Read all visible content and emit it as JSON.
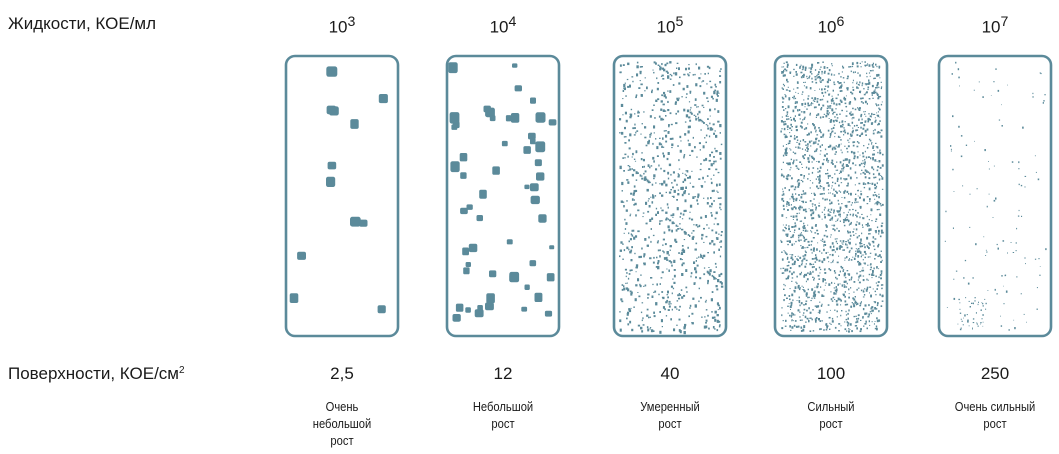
{
  "labels": {
    "liquids_text": "Жидкости, КОЕ/мл",
    "surfaces_text": "Поверхности, КОЕ/см",
    "surfaces_sup": "2"
  },
  "columns": [
    {
      "exp_base": "10",
      "exp_power": "3",
      "surface_value": "2,5",
      "growth_line1": "Очень",
      "growth_line2": "небольшой",
      "growth_line3": "рост",
      "density": "very-low"
    },
    {
      "exp_base": "10",
      "exp_power": "4",
      "surface_value": "12",
      "growth_line1": "Небольшой",
      "growth_line2": "рост",
      "growth_line3": "",
      "density": "low"
    },
    {
      "exp_base": "10",
      "exp_power": "5",
      "surface_value": "40",
      "growth_line1": "Умеренный",
      "growth_line2": "рост",
      "growth_line3": "",
      "density": "moderate"
    },
    {
      "exp_base": "10",
      "exp_power": "6",
      "surface_value": "100",
      "growth_line1": "Сильный",
      "growth_line2": "рост",
      "growth_line3": "",
      "density": "heavy"
    },
    {
      "exp_base": "10",
      "exp_power": "7",
      "surface_value": "250",
      "growth_line1": "Очень сильный",
      "growth_line2": "рост",
      "growth_line3": "",
      "density": "very-heavy"
    }
  ],
  "colors": {
    "colony": "#5b8a9a",
    "slide_border": "#5b8a9a"
  }
}
